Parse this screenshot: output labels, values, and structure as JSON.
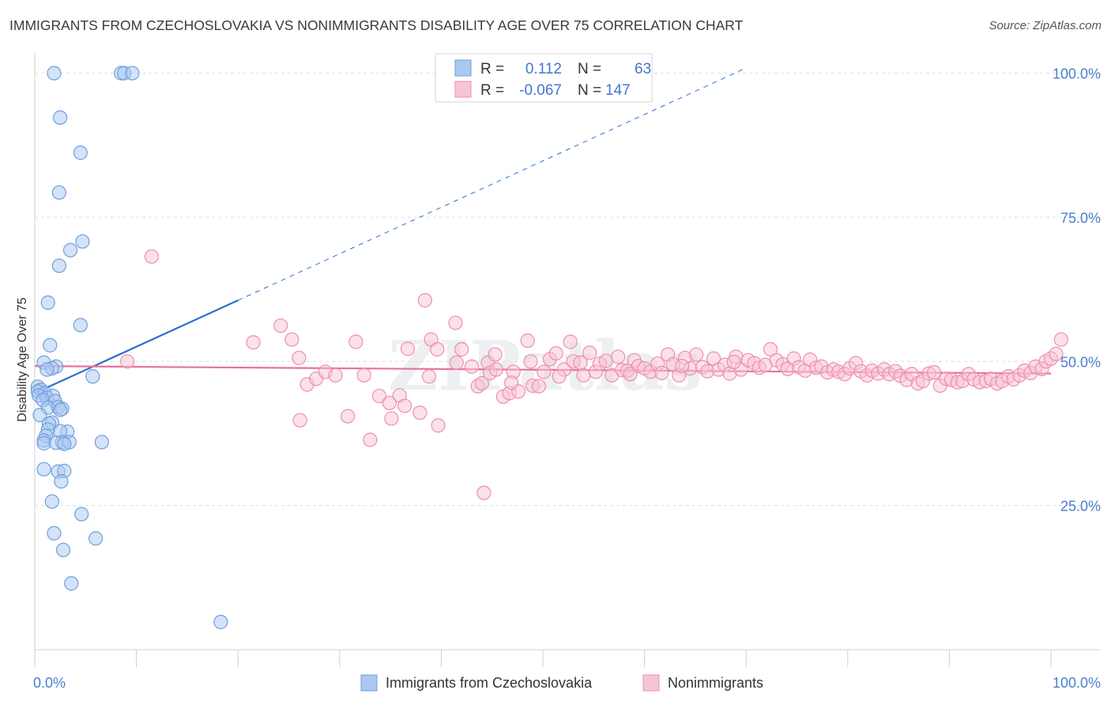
{
  "title": "IMMIGRANTS FROM CZECHOSLOVAKIA VS NONIMMIGRANTS DISABILITY AGE OVER 75 CORRELATION CHART",
  "source": "Source: ZipAtlas.com",
  "watermark": "ZIPatlas",
  "colors": {
    "blue": "#6e9fe0",
    "blue_fill": "#aac8f0",
    "pink": "#ee8fac",
    "pink_fill": "#f7c4d3",
    "blue_line": "#2b6fcf",
    "pink_line": "#e8729a",
    "tick_text": "#4a7fd0"
  },
  "legend": {
    "rows": [
      {
        "r_label": "R =",
        "r_value": "0.112",
        "n_label": "N =",
        "n_value": "63"
      },
      {
        "r_label": "R =",
        "r_value": "-0.067",
        "n_label": "N =",
        "n_value": "147"
      }
    ]
  },
  "bottom_legend": [
    "Immigrants from Czechoslovakia",
    "Nonimmigrants"
  ],
  "chart_data": {
    "type": "scatter",
    "xlabel": "",
    "ylabel": "Disability Age Over 75",
    "xlim": [
      0,
      100
    ],
    "ylim": [
      0,
      102
    ],
    "x_tick_labels": [
      "0.0%",
      "100.0%"
    ],
    "y_ticks": [
      25,
      50,
      75,
      100
    ],
    "y_tick_labels": [
      "25.0%",
      "50.0%",
      "75.0%",
      "100.0%"
    ],
    "grid": true,
    "legend_position": "top-center",
    "series": [
      {
        "name": "Immigrants from Czechoslovakia",
        "color": "#6e9fe0",
        "trend": {
          "x0": 0,
          "y0": 44.5,
          "x1": 20,
          "y1": 60.6,
          "dashed_to_x": 70,
          "dashed_y": 100.9
        },
        "points": [
          [
            1.9,
            100
          ],
          [
            8.5,
            100
          ],
          [
            8.8,
            100
          ],
          [
            9.6,
            100
          ],
          [
            2.5,
            92.3
          ],
          [
            4.5,
            86.2
          ],
          [
            2.4,
            79.3
          ],
          [
            4.7,
            70.8
          ],
          [
            3.5,
            69.3
          ],
          [
            2.4,
            66.6
          ],
          [
            1.3,
            60.2
          ],
          [
            4.5,
            56.3
          ],
          [
            1.5,
            52.8
          ],
          [
            0.9,
            49.8
          ],
          [
            2.1,
            49.1
          ],
          [
            1.7,
            48.8
          ],
          [
            1.2,
            48.6
          ],
          [
            5.7,
            47.4
          ],
          [
            0.3,
            45.6
          ],
          [
            0.6,
            45.1
          ],
          [
            0.3,
            44.8
          ],
          [
            1.0,
            44.5
          ],
          [
            0.4,
            44.1
          ],
          [
            1.2,
            43.7
          ],
          [
            1.8,
            44.0
          ],
          [
            0.8,
            43.3
          ],
          [
            2.0,
            43.1
          ],
          [
            1.3,
            42.0
          ],
          [
            2.3,
            42.1
          ],
          [
            2.7,
            41.8
          ],
          [
            2.5,
            41.6
          ],
          [
            0.5,
            40.7
          ],
          [
            1.7,
            39.4
          ],
          [
            1.4,
            39.2
          ],
          [
            1.3,
            38.2
          ],
          [
            3.2,
            37.8
          ],
          [
            2.5,
            37.9
          ],
          [
            1.1,
            37.1
          ],
          [
            0.9,
            36.3
          ],
          [
            2.7,
            36.0
          ],
          [
            3.4,
            36.0
          ],
          [
            0.9,
            35.8
          ],
          [
            6.6,
            36.0
          ],
          [
            2.1,
            35.9
          ],
          [
            2.9,
            35.7
          ],
          [
            0.9,
            31.3
          ],
          [
            2.3,
            30.9
          ],
          [
            2.9,
            31.0
          ],
          [
            2.6,
            29.2
          ],
          [
            1.7,
            25.7
          ],
          [
            4.6,
            23.5
          ],
          [
            1.9,
            20.2
          ],
          [
            6.0,
            19.3
          ],
          [
            2.8,
            17.3
          ],
          [
            3.6,
            11.5
          ],
          [
            18.3,
            4.8
          ]
        ]
      },
      {
        "name": "Nonimmigrants",
        "color": "#ee8fac",
        "trend": {
          "x0": 0,
          "y0": 49.2,
          "x1": 100,
          "y1": 47.9
        },
        "points": [
          [
            11.5,
            68.2
          ],
          [
            9.1,
            50.0
          ],
          [
            21.5,
            53.3
          ],
          [
            24.2,
            56.2
          ],
          [
            25.3,
            53.8
          ],
          [
            26.0,
            50.6
          ],
          [
            26.8,
            46.0
          ],
          [
            27.7,
            47.0
          ],
          [
            26.1,
            39.8
          ],
          [
            28.6,
            48.2
          ],
          [
            29.6,
            47.6
          ],
          [
            30.8,
            40.5
          ],
          [
            31.6,
            53.4
          ],
          [
            32.4,
            47.6
          ],
          [
            33.0,
            36.4
          ],
          [
            33.9,
            44.0
          ],
          [
            34.9,
            42.8
          ],
          [
            35.1,
            40.1
          ],
          [
            35.9,
            44.1
          ],
          [
            36.4,
            42.3
          ],
          [
            36.7,
            52.2
          ],
          [
            37.9,
            41.1
          ],
          [
            38.4,
            60.6
          ],
          [
            38.8,
            47.4
          ],
          [
            39.0,
            53.8
          ],
          [
            39.6,
            52.1
          ],
          [
            39.7,
            38.9
          ],
          [
            41.4,
            56.7
          ],
          [
            41.5,
            49.8
          ],
          [
            42.0,
            52.1
          ],
          [
            43.6,
            45.7
          ],
          [
            44.0,
            46.2
          ],
          [
            44.2,
            27.2
          ],
          [
            44.6,
            49.8
          ],
          [
            44.8,
            48.0
          ],
          [
            45.3,
            51.2
          ],
          [
            45.4,
            48.6
          ],
          [
            46.1,
            43.9
          ],
          [
            46.7,
            44.5
          ],
          [
            47.1,
            48.2
          ],
          [
            47.6,
            44.8
          ],
          [
            48.5,
            53.6
          ],
          [
            48.8,
            50.0
          ],
          [
            49.0,
            45.8
          ],
          [
            49.6,
            45.7
          ],
          [
            50.1,
            48.2
          ],
          [
            50.7,
            50.4
          ],
          [
            51.3,
            51.4
          ],
          [
            52.1,
            48.6
          ],
          [
            52.7,
            53.4
          ],
          [
            53.0,
            50.0
          ],
          [
            53.7,
            49.8
          ],
          [
            54.0,
            47.6
          ],
          [
            54.6,
            51.5
          ],
          [
            55.2,
            48.2
          ],
          [
            55.6,
            49.6
          ],
          [
            56.2,
            50.1
          ],
          [
            56.8,
            47.6
          ],
          [
            57.4,
            50.8
          ],
          [
            57.8,
            48.5
          ],
          [
            58.3,
            48.4
          ],
          [
            59.0,
            50.2
          ],
          [
            59.4,
            49.2
          ],
          [
            60.0,
            48.8
          ],
          [
            60.6,
            48.2
          ],
          [
            61.3,
            49.6
          ],
          [
            61.7,
            48.0
          ],
          [
            62.3,
            51.2
          ],
          [
            62.8,
            49.5
          ],
          [
            63.4,
            47.6
          ],
          [
            64.0,
            50.6
          ],
          [
            64.5,
            48.8
          ],
          [
            65.1,
            51.2
          ],
          [
            65.7,
            49.0
          ],
          [
            66.2,
            48.3
          ],
          [
            66.8,
            50.5
          ],
          [
            67.3,
            48.6
          ],
          [
            67.9,
            49.4
          ],
          [
            68.4,
            47.9
          ],
          [
            69.0,
            50.8
          ],
          [
            69.5,
            48.6
          ],
          [
            70.2,
            50.2
          ],
          [
            70.8,
            49.7
          ],
          [
            71.3,
            48.9
          ],
          [
            71.9,
            49.4
          ],
          [
            72.4,
            52.1
          ],
          [
            73.0,
            50.2
          ],
          [
            73.6,
            49.5
          ],
          [
            74.1,
            48.7
          ],
          [
            74.7,
            50.5
          ],
          [
            75.2,
            49.0
          ],
          [
            75.8,
            48.4
          ],
          [
            76.3,
            50.3
          ],
          [
            76.9,
            48.9
          ],
          [
            77.4,
            49.1
          ],
          [
            78.0,
            48.1
          ],
          [
            78.6,
            48.6
          ],
          [
            79.1,
            48.2
          ],
          [
            79.7,
            47.8
          ],
          [
            80.2,
            48.8
          ],
          [
            80.8,
            49.7
          ],
          [
            81.3,
            48.3
          ],
          [
            81.9,
            47.6
          ],
          [
            82.4,
            48.4
          ],
          [
            83.0,
            47.9
          ],
          [
            83.6,
            48.6
          ],
          [
            84.1,
            47.8
          ],
          [
            84.7,
            48.3
          ],
          [
            85.2,
            47.5
          ],
          [
            85.8,
            46.8
          ],
          [
            86.3,
            47.8
          ],
          [
            86.9,
            46.2
          ],
          [
            87.4,
            46.6
          ],
          [
            88.0,
            47.9
          ],
          [
            88.5,
            48.1
          ],
          [
            89.1,
            45.8
          ],
          [
            89.7,
            47.0
          ],
          [
            90.2,
            46.8
          ],
          [
            90.8,
            46.4
          ],
          [
            91.3,
            46.6
          ],
          [
            91.9,
            47.8
          ],
          [
            92.4,
            46.9
          ],
          [
            93.0,
            46.4
          ],
          [
            93.6,
            46.6
          ],
          [
            94.1,
            47.0
          ],
          [
            94.7,
            46.2
          ],
          [
            95.2,
            46.6
          ],
          [
            95.8,
            47.4
          ],
          [
            96.3,
            46.9
          ],
          [
            96.9,
            47.6
          ],
          [
            97.4,
            48.4
          ],
          [
            98.0,
            48.0
          ],
          [
            98.5,
            49.1
          ],
          [
            99.1,
            48.7
          ],
          [
            99.5,
            50.0
          ],
          [
            100.0,
            50.5
          ],
          [
            100.5,
            51.3
          ],
          [
            101.0,
            53.8
          ],
          [
            43.0,
            49.1
          ],
          [
            46.9,
            46.3
          ],
          [
            51.6,
            47.4
          ],
          [
            58.6,
            47.8
          ],
          [
            63.7,
            49.2
          ],
          [
            68.8,
            49.9
          ]
        ]
      }
    ]
  }
}
